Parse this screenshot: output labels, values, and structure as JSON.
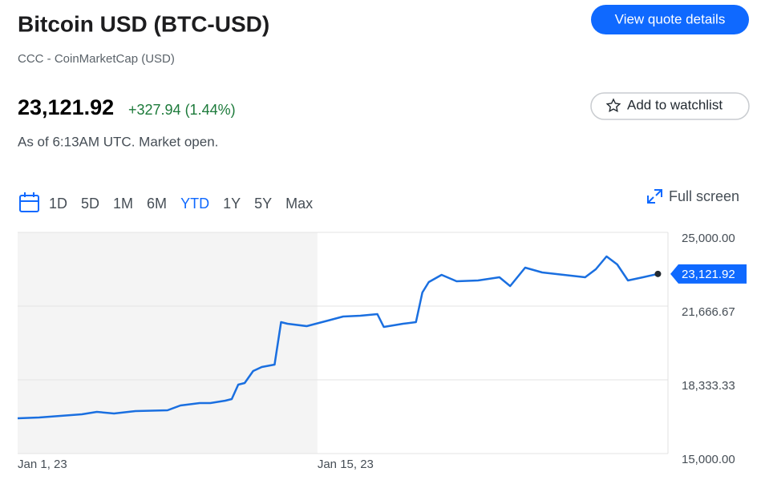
{
  "header": {
    "title": "Bitcoin USD (BTC-USD)",
    "subtitle": "CCC - CoinMarketCap (USD)",
    "price": "23,121.92",
    "change": "+327.94 (1.44%)",
    "as_of": "As of 6:13AM UTC. Market open."
  },
  "buttons": {
    "view_quote": "View quote details",
    "watchlist": "Add to watchlist",
    "full_screen": "Full screen"
  },
  "ranges": {
    "items": [
      "1D",
      "5D",
      "1M",
      "6M",
      "YTD",
      "1Y",
      "5Y",
      "Max"
    ],
    "selected": 4
  },
  "chart_data": {
    "type": "line",
    "color": "#1a6fe0",
    "x": [
      0,
      1,
      2,
      3,
      3.7,
      4.5,
      5.5,
      7,
      7.6,
      8.5,
      9,
      9.7,
      10,
      10.3,
      10.6,
      11,
      11.4,
      12,
      12.3,
      12.6,
      13.5,
      14.5,
      15.2,
      16,
      16.8,
      17.1,
      18,
      18.6,
      18.9,
      19.2,
      19.8,
      20.5,
      21.5,
      22.5,
      23,
      23.7,
      24.5,
      25.5,
      26.5,
      27,
      27.5,
      28,
      28.5,
      29.2,
      29.9
    ],
    "values": [
      16594,
      16630,
      16703,
      16775,
      16884,
      16812,
      16920,
      16957,
      17174,
      17283,
      17283,
      17391,
      17464,
      18116,
      18188,
      18732,
      18913,
      19022,
      20942,
      20870,
      20761,
      21014,
      21196,
      21232,
      21304,
      20725,
      20870,
      20942,
      22283,
      22754,
      23080,
      22790,
      22826,
      22971,
      22572,
      23406,
      23188,
      23080,
      22971,
      23333,
      23913,
      23551,
      22826,
      22971,
      23121.92
    ],
    "value_labels": {
      "44": "23,121.92"
    },
    "xlim": [
      0,
      30.37
    ],
    "xticks": [
      {
        "value": 0,
        "label": "Jan 1, 23"
      },
      {
        "value": 14,
        "label": "Jan 15, 23"
      }
    ],
    "ylim": [
      15000,
      25000
    ],
    "yticks": [
      {
        "value": 25000,
        "label": "25,000.00"
      },
      {
        "value": 21666.67,
        "label": "21,666.67"
      },
      {
        "value": 18333.33,
        "label": "18,333.33"
      },
      {
        "value": 15000,
        "label": "15,000.00"
      }
    ],
    "grid": true
  }
}
